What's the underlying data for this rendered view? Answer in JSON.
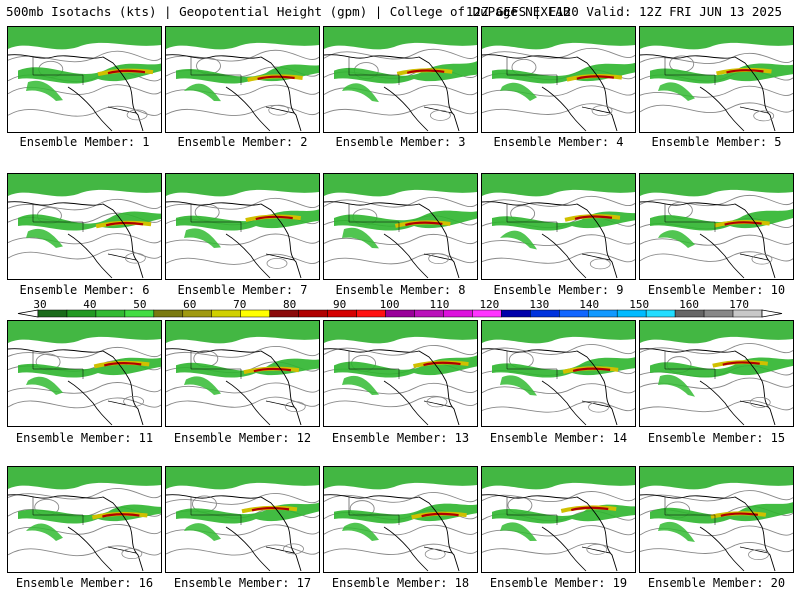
{
  "header": {
    "left": "500mb Isotachs (kts) | Geopotential Height (gpm) | College of DuPage NEXLAB",
    "right": "12Z GEFS | F120 Valid: 12Z FRI JUN 13 2025"
  },
  "members": [
    {
      "label": "Ensemble Member: 1"
    },
    {
      "label": "Ensemble Member: 2"
    },
    {
      "label": "Ensemble Member: 3"
    },
    {
      "label": "Ensemble Member: 4"
    },
    {
      "label": "Ensemble Member: 5"
    },
    {
      "label": "Ensemble Member: 6"
    },
    {
      "label": "Ensemble Member: 7"
    },
    {
      "label": "Ensemble Member: 8"
    },
    {
      "label": "Ensemble Member: 9"
    },
    {
      "label": "Ensemble Member: 10"
    },
    {
      "label": "Ensemble Member: 11"
    },
    {
      "label": "Ensemble Member: 12"
    },
    {
      "label": "Ensemble Member: 13"
    },
    {
      "label": "Ensemble Member: 14"
    },
    {
      "label": "Ensemble Member: 15"
    },
    {
      "label": "Ensemble Member: 16"
    },
    {
      "label": "Ensemble Member: 17"
    },
    {
      "label": "Ensemble Member: 18"
    },
    {
      "label": "Ensemble Member: 19"
    },
    {
      "label": "Ensemble Member: 20"
    }
  ],
  "colorbar": {
    "ticks": [
      "30",
      "40",
      "50",
      "60",
      "70",
      "80",
      "90",
      "100",
      "110",
      "120",
      "130",
      "140",
      "150",
      "160",
      "170"
    ],
    "colors": [
      "#1a6b1a",
      "#229922",
      "#33bb33",
      "#44dd44",
      "#7a7a10",
      "#a09a10",
      "#d0d000",
      "#ffff00",
      "#8b0a0a",
      "#b00000",
      "#d40000",
      "#ff1010",
      "#990099",
      "#bb11bb",
      "#dd11dd",
      "#ff33ff",
      "#0000aa",
      "#0033dd",
      "#1166ff",
      "#1199ff",
      "#00bbff",
      "#22ddff",
      "#666666",
      "#888888",
      "#c8c8c8"
    ]
  }
}
